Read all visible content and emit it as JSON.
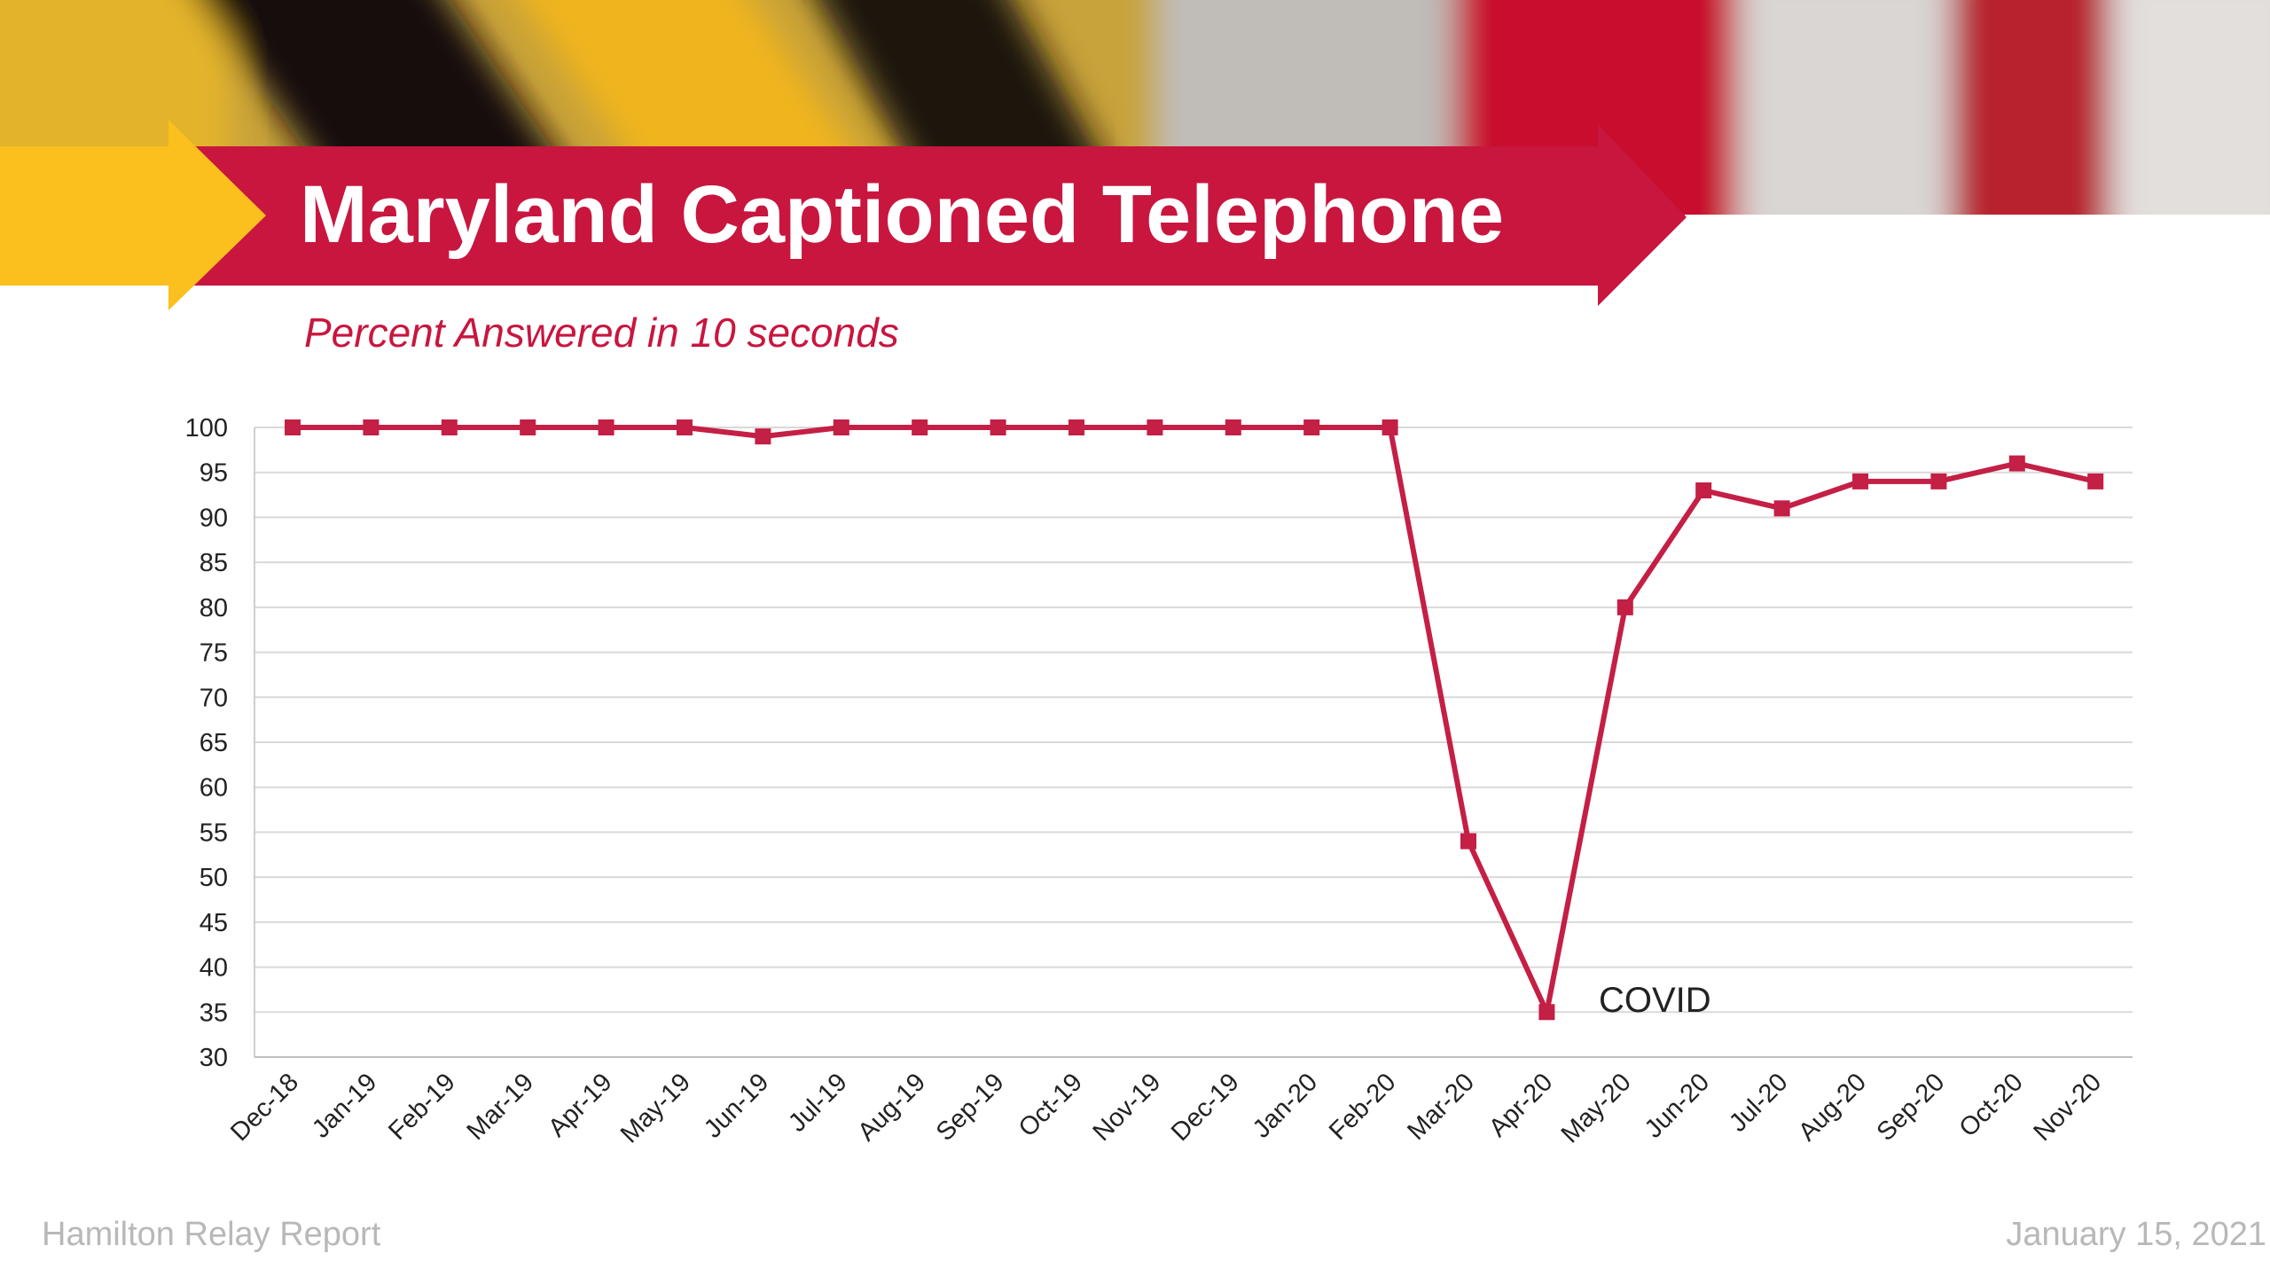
{
  "slide": {
    "title": "Maryland Captioned Telephone",
    "subtitle": "Percent Answered in 10 seconds",
    "footer_left": "Hamilton Relay Report",
    "footer_right": "January 15, 2021"
  },
  "colors": {
    "accent": "#c8163f",
    "arrow_yellow": "#fbbf1e",
    "series": "#c41f45",
    "grid": "#d9d9d9",
    "footer_text": "#b8b8b8"
  },
  "chart_data": {
    "type": "line",
    "title": "",
    "xlabel": "",
    "ylabel": "",
    "categories": [
      "Dec-18",
      "Jan-19",
      "Feb-19",
      "Mar-19",
      "Apr-19",
      "May-19",
      "Jun-19",
      "Jul-19",
      "Aug-19",
      "Sep-19",
      "Oct-19",
      "Nov-19",
      "Dec-19",
      "Jan-20",
      "Feb-20",
      "Mar-20",
      "Apr-20",
      "May-20",
      "Jun-20",
      "Jul-20",
      "Aug-20",
      "Sep-20",
      "Oct-20",
      "Nov-20"
    ],
    "series": [
      {
        "values": [
          100,
          100,
          100,
          100,
          100,
          100,
          99,
          100,
          100,
          100,
          100,
          100,
          100,
          100,
          100,
          54,
          35,
          80,
          93,
          91,
          94,
          94,
          96,
          94
        ]
      }
    ],
    "ylim": [
      30,
      100
    ],
    "yticks": [
      100,
      95,
      90,
      85,
      80,
      75,
      70,
      65,
      60,
      55,
      50,
      45,
      40,
      35,
      30
    ],
    "grid": true,
    "legend": "none",
    "marker": "square",
    "annotations": [
      {
        "text": "COVID",
        "category": "Apr-20"
      }
    ]
  }
}
